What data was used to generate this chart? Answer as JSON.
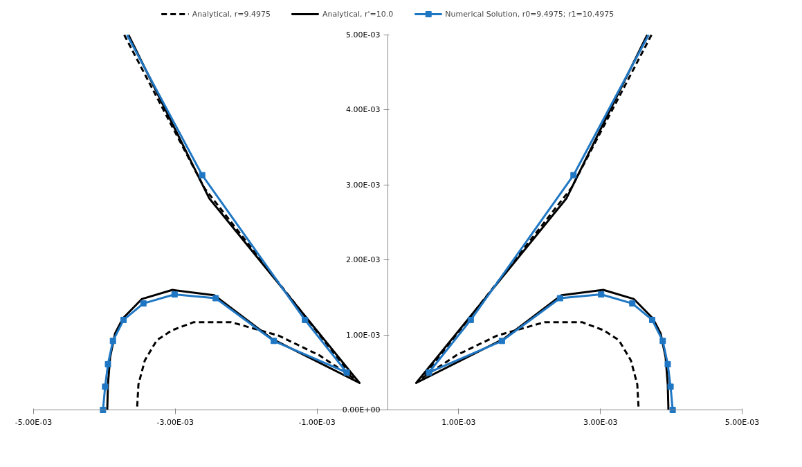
{
  "chart_data": {
    "type": "line",
    "xlim": [
      -0.005,
      0.005
    ],
    "ylim": [
      0,
      0.005
    ],
    "xticks": [
      {
        "value": -0.005,
        "label": "-5.00E-03"
      },
      {
        "value": -0.003,
        "label": "-3.00E-03"
      },
      {
        "value": -0.001,
        "label": "-1.00E-03"
      },
      {
        "value": 0.001,
        "label": "1.00E-03"
      },
      {
        "value": 0.003,
        "label": "3.00E-03"
      },
      {
        "value": 0.005,
        "label": "5.00E-03"
      }
    ],
    "yticks": [
      {
        "value": 0,
        "label": "0.00E+00"
      },
      {
        "value": 0.001,
        "label": "1.00E-03"
      },
      {
        "value": 0.002,
        "label": "2.00E-03"
      },
      {
        "value": 0.003,
        "label": "3.00E-03"
      },
      {
        "value": 0.004,
        "label": "4.00E-03"
      },
      {
        "value": 0.005,
        "label": "5.00E-03"
      }
    ],
    "grid": false,
    "legend": "top",
    "series": [
      {
        "name": "Analytical, r=9.4975",
        "color": "#000000",
        "line_style": "dashed",
        "marker": "none",
        "x": [
          -0.00372,
          -0.00259,
          -0.00049,
          -0.00097,
          -0.00154,
          -0.00221,
          -0.00274,
          -0.00305,
          -0.00326,
          -0.00343,
          -0.00352,
          -0.00354,
          null,
          0.00372,
          0.00259,
          0.00049,
          0.00097,
          0.00154,
          0.00221,
          0.00274,
          0.00305,
          0.00326,
          0.00343,
          0.00352,
          0.00354
        ],
        "values": [
          0.005,
          0.00296,
          0.00043,
          0.00073,
          0.00099,
          0.00117,
          0.00117,
          0.00106,
          0.00093,
          0.00066,
          0.00034,
          0,
          null,
          0.005,
          0.00296,
          0.00043,
          0.00073,
          0.00099,
          0.00117,
          0.00117,
          0.00106,
          0.00093,
          0.00066,
          0.00034,
          0
        ]
      },
      {
        "name": "Analytical, r'=10.0",
        "color": "#000000",
        "line_style": "solid",
        "marker": "none",
        "x": [
          -0.00366,
          -0.00252,
          -0.0004,
          -0.00164,
          -0.00245,
          -0.00304,
          -0.00347,
          -0.00374,
          -0.00385,
          -0.00392,
          -0.00395,
          -0.00396,
          null,
          0.00366,
          0.00252,
          0.0004,
          0.00164,
          0.00245,
          0.00304,
          0.00347,
          0.00374,
          0.00385,
          0.00392,
          0.00395,
          0.00396
        ],
        "values": [
          0.005,
          0.00282,
          0.00036,
          0.00095,
          0.00153,
          0.0016,
          0.00148,
          0.00122,
          0.00102,
          0.0007,
          0.00034,
          0,
          null,
          0.005,
          0.00282,
          0.00036,
          0.00095,
          0.00153,
          0.0016,
          0.00148,
          0.00122,
          0.00102,
          0.0007,
          0.00034,
          0
        ]
      },
      {
        "name": "Numerical Solution, r0=9.4975; r1=10.4975",
        "color": "#1f77c4",
        "line_style": "solid",
        "marker": "square",
        "x": [
          -0.00368,
          -0.00262,
          -0.00117,
          -0.00058,
          -0.00161,
          -0.00243,
          -0.00301,
          -0.00345,
          -0.00373,
          -0.00388,
          -0.00395,
          -0.00399,
          -0.00402,
          null,
          0.00368,
          0.00262,
          0.00117,
          0.00058,
          0.00161,
          0.00243,
          0.00301,
          0.00345,
          0.00373,
          0.00388,
          0.00395,
          0.00399,
          0.00402
        ],
        "values": [
          0.005,
          0.00313,
          0.0012,
          0.0005,
          0.00092,
          0.00149,
          0.00154,
          0.00142,
          0.0012,
          0.00092,
          0.00061,
          0.00031,
          0,
          null,
          0.005,
          0.00313,
          0.0012,
          0.0005,
          0.00092,
          0.00149,
          0.00154,
          0.00142,
          0.0012,
          0.00092,
          0.00061,
          0.00031,
          0
        ]
      }
    ]
  }
}
